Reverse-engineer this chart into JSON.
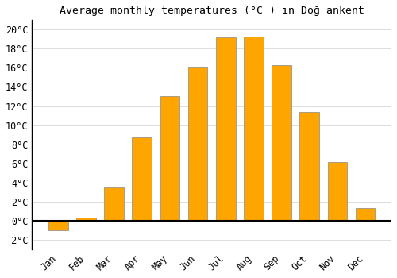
{
  "title": "Average monthly temperatures (°C ) in Doğ ankent",
  "months": [
    "Jan",
    "Feb",
    "Mar",
    "Apr",
    "May",
    "Jun",
    "Jul",
    "Aug",
    "Sep",
    "Oct",
    "Nov",
    "Dec"
  ],
  "values": [
    -1.0,
    0.3,
    3.5,
    8.7,
    13.0,
    16.1,
    19.2,
    19.3,
    16.3,
    11.4,
    6.1,
    1.3
  ],
  "bar_color": "#FFA500",
  "bar_edge_color": "#888888",
  "ylim": [
    -3,
    21
  ],
  "yticks": [
    -2,
    0,
    2,
    4,
    6,
    8,
    10,
    12,
    14,
    16,
    18,
    20
  ],
  "background_color": "#ffffff",
  "grid_color": "#dddddd",
  "title_fontsize": 9.5,
  "tick_fontsize": 8.5,
  "zero_line_color": "#000000",
  "left_spine_color": "#000000"
}
